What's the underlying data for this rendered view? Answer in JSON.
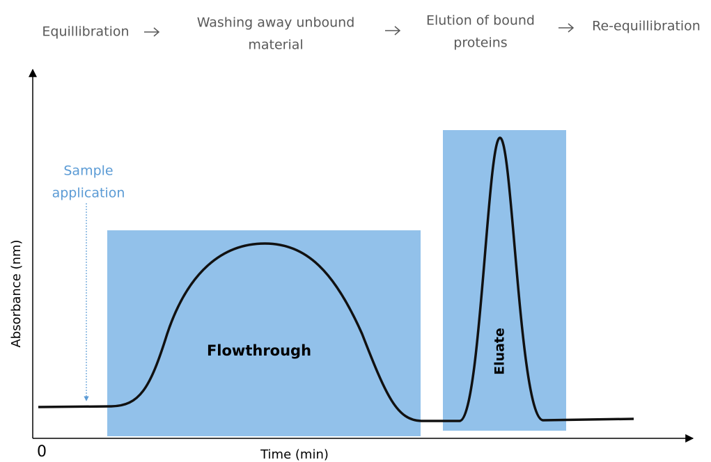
{
  "steps": [
    [
      "Equillibration"
    ],
    [
      "Washing away unbound",
      "material"
    ],
    [
      "Elution of bound",
      "proteins"
    ],
    [
      "Re-equillibration"
    ]
  ],
  "annotations": {
    "sample_application": [
      "Sample",
      "application"
    ],
    "flowthrough": "Flowthrough",
    "eluate": "Eluate"
  },
  "axes": {
    "y_label": "Absorbance (nm)",
    "x_label": "Time (min)",
    "origin": "0"
  }
}
